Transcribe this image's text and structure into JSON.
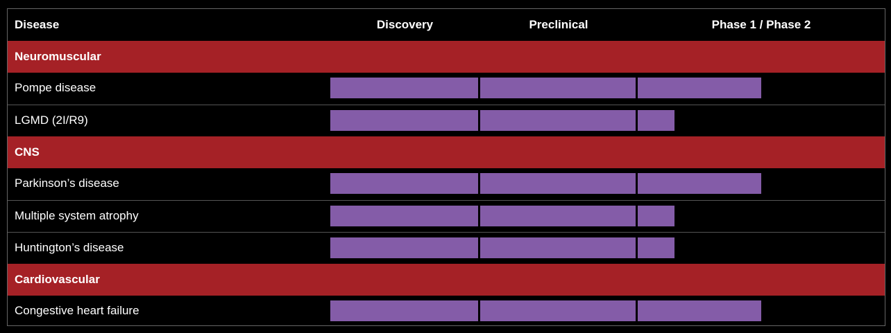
{
  "header": {
    "disease": "Disease",
    "stages": [
      "Discovery",
      "Preclinical",
      "Phase 1 / Phase 2"
    ]
  },
  "groups": [
    {
      "name": "Neuromuscular",
      "rows": [
        {
          "disease": "Pompe disease",
          "progress": 2.5
        },
        {
          "disease": "LGMD (2I/R9)",
          "progress": 2.15
        }
      ]
    },
    {
      "name": "CNS",
      "rows": [
        {
          "disease": "Parkinson’s disease",
          "progress": 2.5
        },
        {
          "disease": "Multiple system atrophy",
          "progress": 2.15
        },
        {
          "disease": "Huntington’s disease",
          "progress": 2.15
        }
      ]
    },
    {
      "name": "Cardiovascular",
      "rows": [
        {
          "disease": "Congestive heart failure",
          "progress": 2.5
        }
      ]
    }
  ]
}
